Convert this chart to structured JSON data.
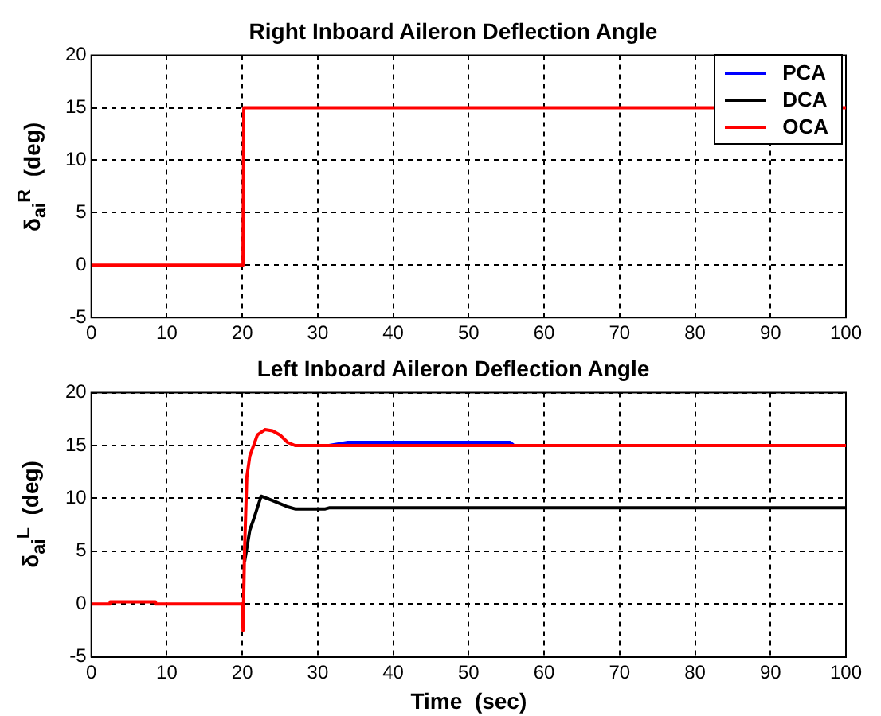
{
  "chart_data": [
    {
      "type": "line",
      "title": "Right Inboard Aileron Deflection Angle",
      "ylabel": "δ$_{ai}$$^{R}$  (deg)",
      "xlim": [
        0,
        100
      ],
      "xticks": [
        0,
        10,
        20,
        30,
        40,
        50,
        60,
        70,
        80,
        90,
        100
      ],
      "ylim": [
        -5,
        20
      ],
      "yticks": [
        -5,
        0,
        5,
        10,
        15,
        20
      ],
      "grid": true,
      "legend": "top right",
      "marker": "none",
      "line_style": "solid",
      "series": [
        {
          "name": "PCA",
          "color": "#0000ff"
        },
        {
          "name": "DCA",
          "color": "#000000"
        },
        {
          "name": "OCA",
          "color": "#ff0000",
          "x": [
            0,
            20,
            20.1,
            20.2,
            100
          ],
          "values": [
            0,
            0,
            2,
            15,
            15
          ]
        }
      ]
    },
    {
      "type": "line",
      "title": "Left Inboard Aileron Deflection Angle",
      "xlabel": "Time  (sec)",
      "ylabel": "δ$_{ai}$$^{L}$  (deg)",
      "xlim": [
        0,
        100
      ],
      "xticks": [
        0,
        10,
        20,
        30,
        40,
        50,
        60,
        70,
        80,
        90,
        100
      ],
      "ylim": [
        -5,
        20
      ],
      "yticks": [
        -5,
        0,
        5,
        10,
        15,
        20
      ],
      "grid": true,
      "marker": "none",
      "line_style": "solid",
      "series": [
        {
          "color": "#0000ff",
          "x": [
            31.5,
            34,
            55.5,
            56
          ],
          "values": [
            15,
            15.3,
            15.3,
            15
          ]
        },
        {
          "color": "#000000",
          "x": [
            20.3,
            21,
            21.5,
            22.5,
            24,
            26,
            27,
            31,
            31.5,
            100
          ],
          "values": [
            4,
            7,
            8,
            10.2,
            9.8,
            9.2,
            9,
            9,
            9.1,
            9.1
          ]
        },
        {
          "color": "#ff0000",
          "x": [
            0,
            2.5,
            2.5,
            8.5,
            8.5,
            20,
            20.1,
            20.3,
            20.6,
            21,
            22,
            23,
            24,
            25,
            26,
            27,
            31.5,
            100
          ],
          "values": [
            0,
            0,
            0.2,
            0.2,
            0,
            0,
            -2.5,
            5,
            12,
            14,
            16,
            16.5,
            16.4,
            16,
            15.3,
            15,
            15,
            15
          ]
        }
      ]
    }
  ]
}
